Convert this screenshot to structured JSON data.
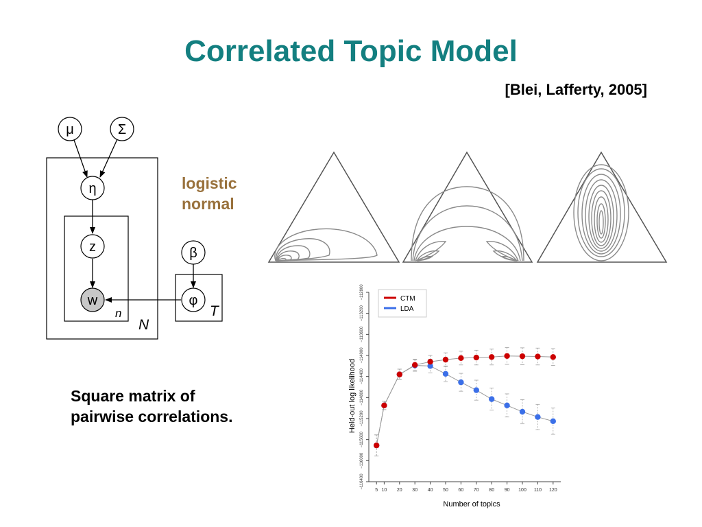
{
  "slide": {
    "title": "Correlated Topic Model",
    "citation": "[Blei, Lafferty, 2005]",
    "annotation_line1": "logistic",
    "annotation_line2": "normal",
    "caption_line1": "Square matrix of",
    "caption_line2": "pairwise correlations."
  },
  "graphical_model": {
    "nodes": {
      "mu": "μ",
      "sigma": "Σ",
      "eta": "η",
      "z": "z",
      "w": "w",
      "beta": "β",
      "phi": "φ"
    },
    "plates": {
      "outer": "N",
      "inner": "n",
      "topics": "T"
    },
    "observed_node_color": "#c8c8c8"
  },
  "chart_data": {
    "type": "line",
    "xlabel": "Number of topics",
    "ylabel": "Held-out log likelihood",
    "x": [
      5,
      10,
      20,
      30,
      40,
      50,
      60,
      70,
      80,
      90,
      100,
      110,
      120
    ],
    "x_ticks": [
      5,
      10,
      20,
      30,
      40,
      50,
      60,
      70,
      80,
      90,
      100,
      110,
      120
    ],
    "y_ticks": [
      -116400,
      -116000,
      -115600,
      -115200,
      -114800,
      -114400,
      -114000,
      -113600,
      -113200,
      -112800
    ],
    "ylim": [
      -116400,
      -112800
    ],
    "legend_position": "top-left",
    "series": [
      {
        "name": "CTM",
        "color": "#cc0000",
        "values": [
          -115710,
          -114950,
          -114360,
          -114180,
          -114120,
          -114080,
          -114050,
          -114040,
          -114030,
          -114010,
          -114015,
          -114020,
          -114030
        ],
        "errors": [
          200,
          80,
          100,
          110,
          120,
          130,
          130,
          140,
          150,
          160,
          160,
          160,
          160
        ]
      },
      {
        "name": "LDA",
        "color": "#3b6fe8",
        "values": [
          -115710,
          -114950,
          -114360,
          -114190,
          -114200,
          -114350,
          -114510,
          -114660,
          -114830,
          -114950,
          -115070,
          -115170,
          -115250
        ],
        "errors": [
          200,
          80,
          100,
          110,
          130,
          150,
          170,
          190,
          210,
          220,
          230,
          240,
          250
        ]
      }
    ]
  }
}
